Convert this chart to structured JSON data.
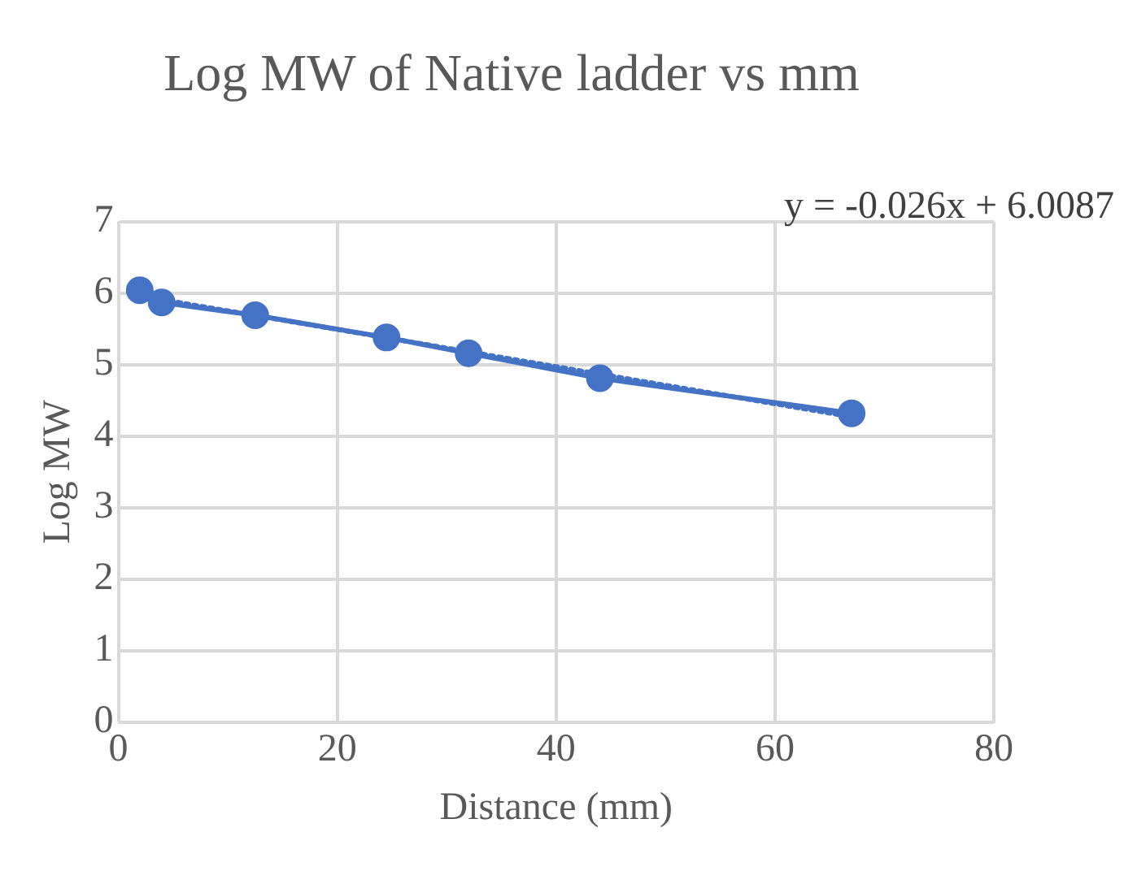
{
  "chart_data": {
    "type": "line",
    "title": "Log MW of Native ladder vs mm",
    "xlabel": "Distance (mm)",
    "ylabel": "Log MW",
    "annotations": [
      "y = -0.026x + 6.0087"
    ],
    "xlim": [
      0,
      80
    ],
    "xticks": [
      0,
      20,
      40,
      60,
      80
    ],
    "ylim": [
      0,
      7
    ],
    "yticks": [
      0,
      1,
      2,
      3,
      4,
      5,
      6,
      7
    ],
    "grid": true,
    "legend": false,
    "series": [
      {
        "color": "#4472c4",
        "x": [
          1.95,
          3.95,
          12.5,
          24.5,
          32,
          44,
          67
        ],
        "values": [
          6.04,
          5.87,
          5.69,
          5.38,
          5.16,
          4.81,
          4.32
        ],
        "marker": "circle",
        "line_style": "solid"
      },
      {
        "color": "#4472c4",
        "x": [
          3.95,
          67
        ],
        "values": [
          5.91,
          4.27
        ],
        "marker": "none",
        "line_style": "dotted"
      }
    ]
  }
}
